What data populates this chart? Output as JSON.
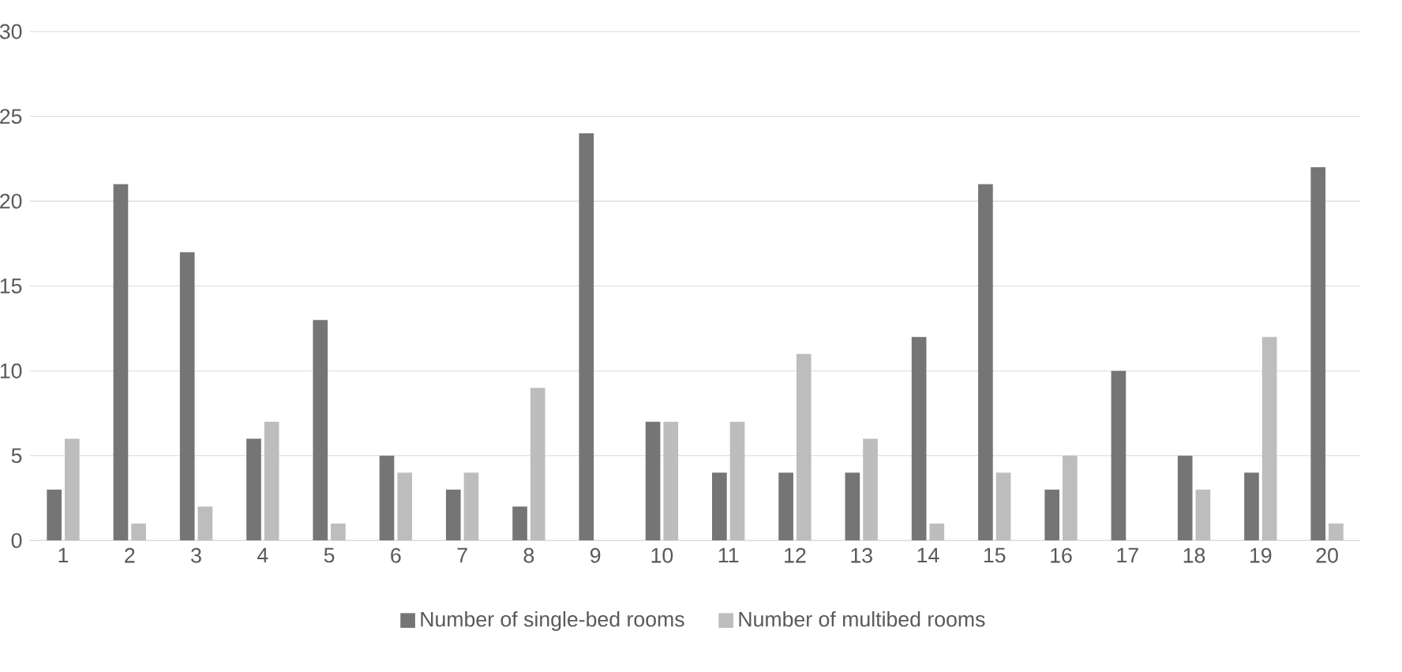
{
  "chart_data": {
    "type": "bar",
    "categories": [
      "1",
      "2",
      "3",
      "4",
      "5",
      "6",
      "7",
      "8",
      "9",
      "10",
      "11",
      "12",
      "13",
      "14",
      "15",
      "16",
      "17",
      "18",
      "19",
      "20"
    ],
    "series": [
      {
        "name": "Number of single-bed rooms",
        "color": "#757575",
        "values": [
          3,
          21,
          17,
          6,
          13,
          5,
          3,
          2,
          24,
          7,
          4,
          4,
          4,
          12,
          21,
          3,
          10,
          5,
          4,
          22
        ]
      },
      {
        "name": "Number of multibed rooms",
        "color": "#bdbdbd",
        "values": [
          6,
          1,
          2,
          7,
          1,
          4,
          4,
          9,
          0,
          7,
          7,
          11,
          6,
          1,
          4,
          5,
          0,
          3,
          12,
          1
        ]
      }
    ],
    "ylim": [
      0,
      30
    ],
    "yticks": [
      0,
      5,
      10,
      15,
      20,
      25,
      30
    ],
    "grid": "y",
    "legend": "bottom"
  }
}
